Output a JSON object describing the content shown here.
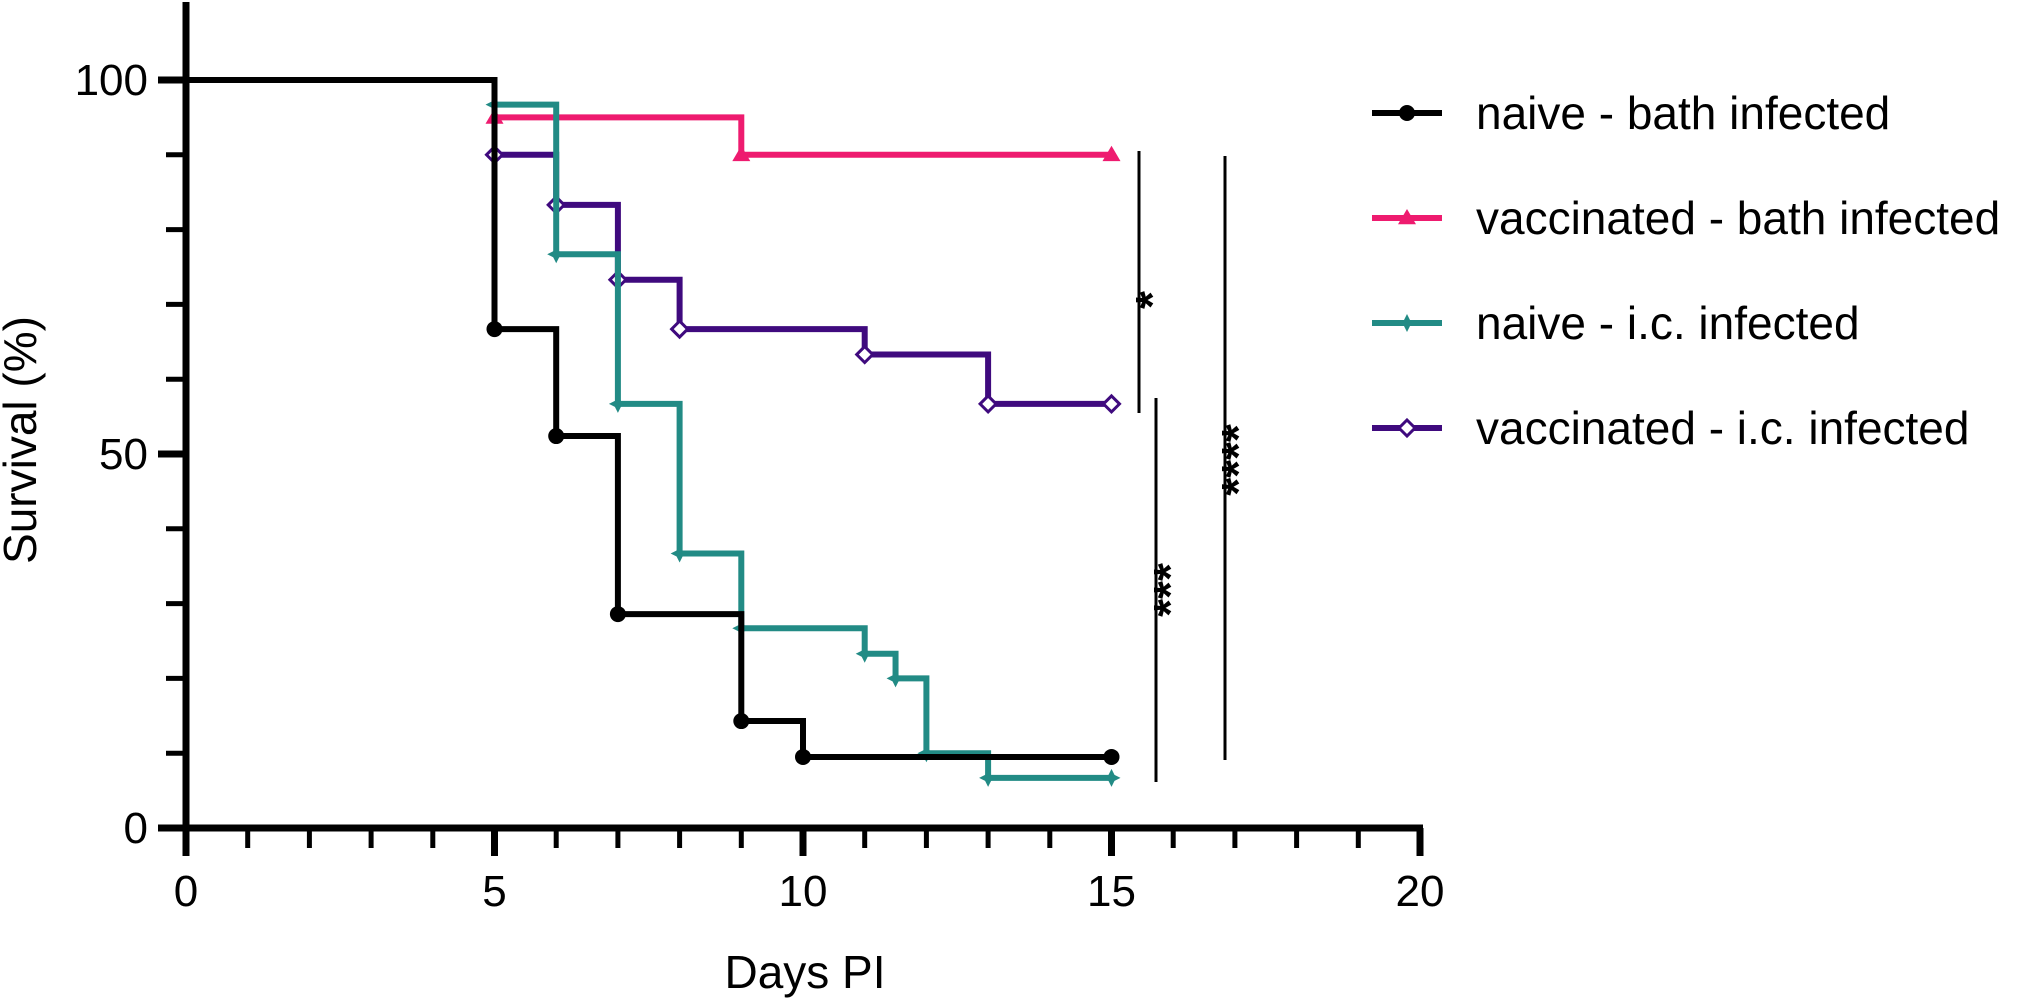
{
  "chart_data": {
    "type": "line",
    "title": "",
    "xlabel": "Days PI",
    "ylabel": "Survival (%)",
    "xlim": [
      0,
      20
    ],
    "ylim": [
      0,
      110
    ],
    "xticks": [
      "0",
      "5",
      "10",
      "15",
      "20"
    ],
    "yticks": [
      "0",
      "50",
      "100"
    ],
    "legend_position": "right",
    "series": [
      {
        "name": "naive - bath infected",
        "color": "#000000",
        "marker": "circle",
        "steps": [
          [
            0,
            100
          ],
          [
            5,
            66.7
          ],
          [
            6,
            52.4
          ],
          [
            7,
            28.6
          ],
          [
            9,
            14.3
          ],
          [
            10,
            9.5
          ],
          [
            15,
            9.5
          ]
        ]
      },
      {
        "name": "vaccinated - bath infected",
        "color": "#ee1b6f",
        "marker": "triangle",
        "steps": [
          [
            5,
            95
          ],
          [
            9,
            90
          ],
          [
            15,
            90
          ]
        ]
      },
      {
        "name": "naive - i.c. infected",
        "color": "#228b85",
        "marker": "star",
        "steps": [
          [
            5,
            96.7
          ],
          [
            6,
            76.7
          ],
          [
            7,
            56.7
          ],
          [
            8,
            36.7
          ],
          [
            9,
            26.7
          ],
          [
            11,
            23.3
          ],
          [
            11.5,
            20
          ],
          [
            12,
            10
          ],
          [
            13,
            6.7
          ],
          [
            15,
            6.7
          ]
        ]
      },
      {
        "name": "vaccinated - i.c. infected",
        "color": "#3f0a7e",
        "marker": "diamond",
        "steps": [
          [
            5,
            90
          ],
          [
            6,
            83.3
          ],
          [
            7,
            73.3
          ],
          [
            8,
            66.7
          ],
          [
            11,
            63.3
          ],
          [
            13,
            56.7
          ],
          [
            15,
            56.7
          ]
        ]
      }
    ],
    "significance": [
      {
        "label": "*",
        "from_y": 90,
        "to_y": 56.7
      },
      {
        "label": "***",
        "from_y": 56.7,
        "to_y": 6.7
      },
      {
        "label": "****",
        "from_y": 90,
        "to_y": 9.5
      }
    ]
  }
}
